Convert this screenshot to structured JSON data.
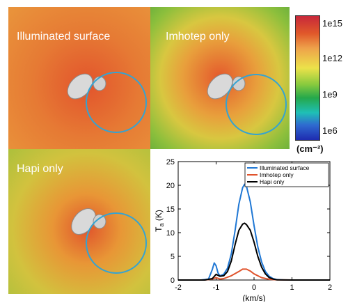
{
  "panels": {
    "illuminated": {
      "label": "Illuminated surface"
    },
    "imhotep": {
      "label": "Imhotep only"
    },
    "hapi": {
      "label": "Hapi only"
    }
  },
  "colorbar": {
    "ticks": [
      "1e15",
      "1e12",
      "1e9",
      "1e6"
    ],
    "unit": "(cm⁻²)",
    "colors": [
      "#c8283a",
      "#e0582a",
      "#eea24a",
      "#ece24a",
      "#8acb3e",
      "#25a84b",
      "#1fbfb6",
      "#2f6ad0",
      "#1e2bb0"
    ]
  },
  "chart_data": {
    "type": "line",
    "xlabel": "(km/s)",
    "ylabel": "T",
    "ylabel_sub": "a",
    "ylabel_unit": "(K)",
    "xlim": [
      -2,
      2
    ],
    "ylim": [
      0,
      25
    ],
    "xticks": [
      -2,
      -1,
      0,
      1,
      2
    ],
    "yticks": [
      0,
      5,
      10,
      15,
      20,
      25
    ],
    "legend_position": "top-right",
    "series": [
      {
        "name": "Illuminated surface",
        "color": "#1f77d4",
        "x": [
          -2.0,
          -1.4,
          -1.2,
          -1.1,
          -1.05,
          -1.0,
          -0.95,
          -0.9,
          -0.8,
          -0.7,
          -0.6,
          -0.5,
          -0.4,
          -0.3,
          -0.25,
          -0.2,
          -0.1,
          0.0,
          0.1,
          0.2,
          0.3,
          0.4,
          0.5,
          0.6,
          0.8,
          1.0,
          2.0
        ],
        "y": [
          0,
          0,
          0.2,
          2.2,
          3.6,
          3.0,
          1.5,
          0.9,
          1.2,
          2.5,
          5.5,
          10.5,
          16.0,
          19.5,
          20.2,
          19.8,
          16.5,
          11.5,
          7.0,
          3.8,
          1.8,
          0.8,
          0.3,
          0.1,
          0,
          0,
          0
        ]
      },
      {
        "name": "Imhotep only",
        "color": "#e0532c",
        "x": [
          -2.0,
          -1.3,
          -1.1,
          -1.0,
          -0.9,
          -0.8,
          -0.6,
          -0.4,
          -0.3,
          -0.2,
          -0.1,
          0.0,
          0.2,
          0.4,
          0.6,
          1.0,
          2.0
        ],
        "y": [
          0,
          0,
          0.2,
          0.5,
          0.2,
          0.3,
          0.9,
          1.8,
          2.3,
          2.3,
          1.9,
          1.3,
          0.5,
          0.15,
          0.05,
          0,
          0
        ]
      },
      {
        "name": "Hapi only",
        "color": "#000000",
        "x": [
          -2.0,
          -1.3,
          -1.1,
          -1.0,
          -0.9,
          -0.8,
          -0.7,
          -0.6,
          -0.5,
          -0.4,
          -0.3,
          -0.25,
          -0.2,
          -0.1,
          0.0,
          0.1,
          0.2,
          0.3,
          0.4,
          0.5,
          0.6,
          1.0,
          2.0
        ],
        "y": [
          0,
          0,
          0.3,
          1.2,
          0.8,
          0.9,
          1.8,
          4.0,
          7.5,
          10.5,
          11.8,
          12.0,
          11.7,
          10.5,
          8.0,
          5.0,
          2.7,
          1.3,
          0.5,
          0.2,
          0.05,
          0,
          0
        ]
      }
    ]
  }
}
